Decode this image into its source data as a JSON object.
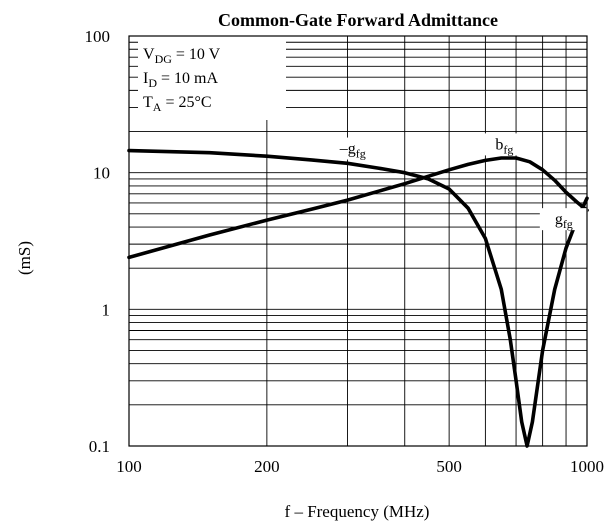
{
  "chart_data": {
    "type": "line",
    "title": "Common-Gate Forward Admittance",
    "xlabel": "f – Frequency (MHz)",
    "ylabel": "(mS)",
    "xscale": "log",
    "yscale": "log",
    "xlim": [
      100,
      1000
    ],
    "ylim": [
      0.1,
      100
    ],
    "xticks": [
      {
        "value": 100,
        "label": "100"
      },
      {
        "value": 200,
        "label": "200"
      },
      {
        "value": 500,
        "label": "500"
      },
      {
        "value": 1000,
        "label": "1000"
      }
    ],
    "yticks": [
      {
        "value": 0.1,
        "label": "0.1"
      },
      {
        "value": 1,
        "label": "1"
      },
      {
        "value": 10,
        "label": "10"
      },
      {
        "value": 100,
        "label": "100"
      }
    ],
    "grid": true,
    "conditions": {
      "vdg": {
        "base": "V",
        "sub": "DG",
        "rest": " = 10 V"
      },
      "id": {
        "base": "I",
        "sub": "D",
        "rest": " = 10 mA"
      },
      "ta": {
        "base": "T",
        "sub": "A",
        "rest": " = 25°C"
      }
    },
    "series": [
      {
        "name": "–g",
        "sub": "fg",
        "key": "neg-gfg",
        "x": [
          100,
          150,
          200,
          250,
          300,
          350,
          400,
          450,
          500,
          550,
          600,
          650,
          680,
          700,
          720,
          740,
          760,
          800,
          850,
          900,
          950,
          1000
        ],
        "y": [
          14.5,
          14.0,
          13.2,
          12.4,
          11.7,
          10.8,
          10.0,
          9.0,
          7.6,
          5.5,
          3.3,
          1.4,
          0.6,
          0.3,
          0.15,
          0.1,
          0.15,
          0.5,
          1.4,
          2.8,
          4.5,
          6.5
        ],
        "label_at": [
          308,
          13.8
        ]
      },
      {
        "name": "g",
        "sub": "fg",
        "key": "gfg",
        "label_at": [
          890,
          4.2
        ]
      },
      {
        "name": "b",
        "sub": "fg",
        "key": "bfg",
        "x": [
          100,
          150,
          200,
          250,
          300,
          350,
          400,
          450,
          500,
          550,
          600,
          650,
          700,
          750,
          800,
          850,
          900,
          950,
          1000
        ],
        "y": [
          2.4,
          3.5,
          4.5,
          5.4,
          6.3,
          7.3,
          8.3,
          9.4,
          10.5,
          11.5,
          12.3,
          12.8,
          12.8,
          12.0,
          10.5,
          8.8,
          7.2,
          6.1,
          5.3
        ],
        "label_at": [
          660,
          14.8
        ]
      }
    ]
  }
}
